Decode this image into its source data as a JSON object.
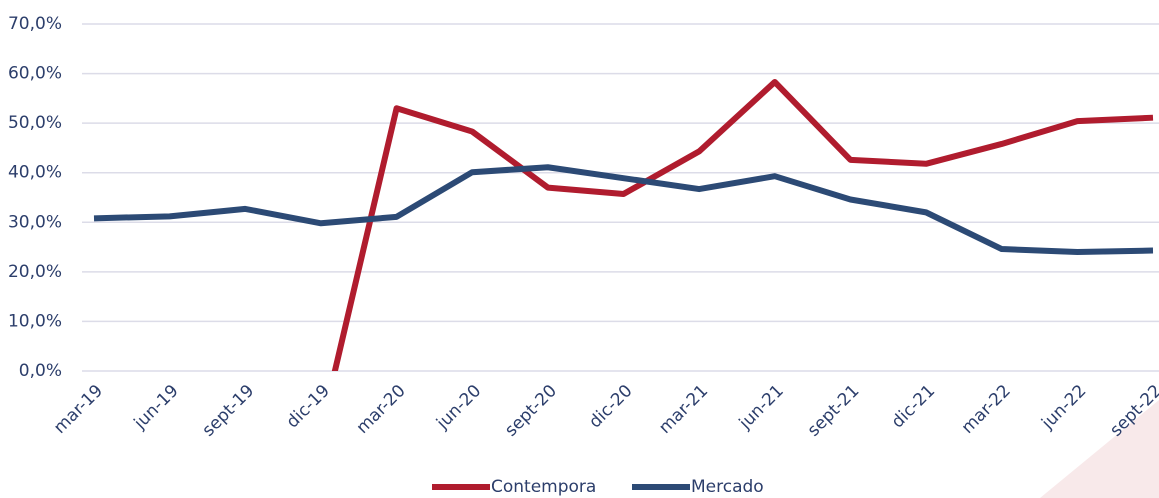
{
  "chart_data": {
    "type": "line",
    "categories": [
      "mar-19",
      "jun-19",
      "sept-19",
      "dic-19",
      "mar-20",
      "jun-20",
      "sept-20",
      "dic-20",
      "mar-21",
      "jun-21",
      "sept-21",
      "dic-21",
      "mar-22",
      "jun-22",
      "sept-22"
    ],
    "series": [
      {
        "name": "Contempora",
        "color": "#b01c2e",
        "values": [
          null,
          null,
          null,
          -12,
          53.0,
          48.3,
          37.0,
          35.7,
          44.3,
          58.3,
          42.6,
          41.8,
          45.8,
          50.4,
          51.1
        ]
      },
      {
        "name": "Mercado",
        "color": "#2c4a75",
        "values": [
          30.8,
          31.2,
          32.7,
          29.8,
          31.1,
          40.1,
          41.1,
          38.9,
          36.7,
          39.3,
          34.6,
          32.0,
          24.6,
          24.0,
          24.3
        ]
      }
    ],
    "ylim": [
      0,
      70
    ],
    "yticks": [
      {
        "value": 0,
        "label": "0,0%"
      },
      {
        "value": 10,
        "label": "10,0%"
      },
      {
        "value": 20,
        "label": "20,0%"
      },
      {
        "value": 30,
        "label": "30,0%"
      },
      {
        "value": 40,
        "label": "40,0%"
      },
      {
        "value": 50,
        "label": "50,0%"
      },
      {
        "value": 60,
        "label": "60,0%"
      },
      {
        "value": 70,
        "label": "70,0%"
      }
    ],
    "grid": true,
    "legend": "bottom"
  }
}
